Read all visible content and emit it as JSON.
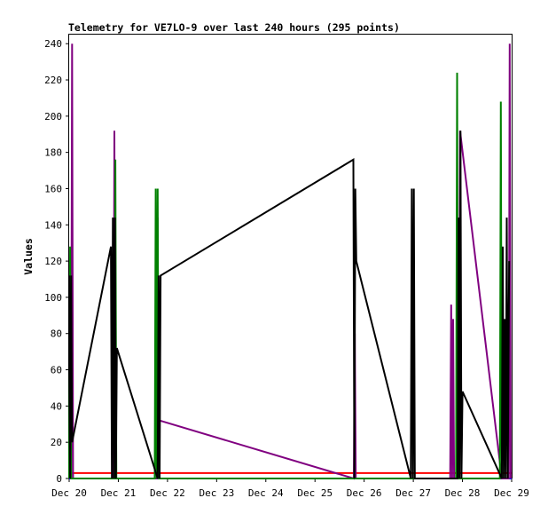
{
  "chart_data": {
    "type": "line",
    "title": "Telemetry for VE7LO-9 over last 240 hours (295 points)",
    "xlabel": "",
    "ylabel": "Values",
    "xlim": [
      0,
      9
    ],
    "ylim": [
      0,
      245
    ],
    "x_ticks": [
      "Dec 20",
      "Dec 21",
      "Dec 22",
      "Dec 23",
      "Dec 24",
      "Dec 25",
      "Dec 26",
      "Dec 27",
      "Dec 28",
      "Dec 29"
    ],
    "y_ticks": [
      0,
      20,
      40,
      60,
      80,
      100,
      120,
      140,
      160,
      180,
      200,
      220,
      240
    ],
    "grid": false,
    "legend": "none",
    "series": [
      {
        "color": "#000000",
        "points": [
          [
            0.0,
            112
          ],
          [
            0.02,
            0
          ],
          [
            0.04,
            112
          ],
          [
            0.06,
            20
          ],
          [
            0.85,
            128
          ],
          [
            0.87,
            0
          ],
          [
            0.89,
            144
          ],
          [
            0.91,
            0
          ],
          [
            0.93,
            144
          ],
          [
            0.95,
            0
          ],
          [
            0.97,
            72
          ],
          [
            1.8,
            0
          ],
          [
            1.82,
            112
          ],
          [
            1.84,
            0
          ],
          [
            1.86,
            112
          ],
          [
            5.78,
            176
          ],
          [
            5.8,
            0
          ],
          [
            5.82,
            160
          ],
          [
            5.84,
            120
          ],
          [
            6.95,
            0
          ],
          [
            6.97,
            160
          ],
          [
            6.99,
            0
          ],
          [
            7.01,
            160
          ],
          [
            7.03,
            0
          ],
          [
            7.9,
            0
          ],
          [
            7.92,
            144
          ],
          [
            7.94,
            0
          ],
          [
            7.96,
            192
          ],
          [
            7.98,
            0
          ],
          [
            8.0,
            48
          ],
          [
            8.8,
            0
          ],
          [
            8.82,
            128
          ],
          [
            8.84,
            0
          ],
          [
            8.86,
            88
          ],
          [
            8.88,
            0
          ],
          [
            8.9,
            144
          ],
          [
            8.92,
            0
          ],
          [
            8.95,
            120
          ]
        ]
      },
      {
        "color": "#008000",
        "points": [
          [
            0.0,
            0
          ],
          [
            0.02,
            128
          ],
          [
            0.04,
            0
          ],
          [
            0.92,
            0
          ],
          [
            0.94,
            176
          ],
          [
            0.96,
            0
          ],
          [
            1.74,
            0
          ],
          [
            1.76,
            160
          ],
          [
            1.78,
            0
          ],
          [
            1.8,
            160
          ],
          [
            1.82,
            0
          ],
          [
            7.87,
            0
          ],
          [
            7.89,
            224
          ],
          [
            7.91,
            0
          ],
          [
            8.76,
            0
          ],
          [
            8.78,
            208
          ],
          [
            8.8,
            0
          ]
        ]
      },
      {
        "color": "#800080",
        "points": [
          [
            0.04,
            0
          ],
          [
            0.06,
            240
          ],
          [
            0.08,
            0
          ],
          [
            0.9,
            0
          ],
          [
            0.92,
            192
          ],
          [
            0.94,
            0
          ],
          [
            1.78,
            0
          ],
          [
            1.8,
            144
          ],
          [
            1.82,
            0
          ],
          [
            1.84,
            32
          ],
          [
            5.79,
            0
          ],
          [
            5.81,
            80
          ],
          [
            5.83,
            0
          ],
          [
            7.75,
            0
          ],
          [
            7.77,
            96
          ],
          [
            7.79,
            0
          ],
          [
            7.81,
            88
          ],
          [
            7.83,
            0
          ],
          [
            7.93,
            0
          ],
          [
            7.95,
            192
          ],
          [
            8.8,
            0
          ],
          [
            8.9,
            0
          ],
          [
            8.94,
            0
          ],
          [
            8.96,
            240
          ],
          [
            8.98,
            0
          ]
        ]
      },
      {
        "color": "#ff0000",
        "points": [
          [
            0.0,
            3
          ],
          [
            9.0,
            3
          ]
        ]
      },
      {
        "color": "#0000ff",
        "points": [
          [
            0.0,
            0
          ],
          [
            9.0,
            0
          ]
        ]
      }
    ]
  }
}
